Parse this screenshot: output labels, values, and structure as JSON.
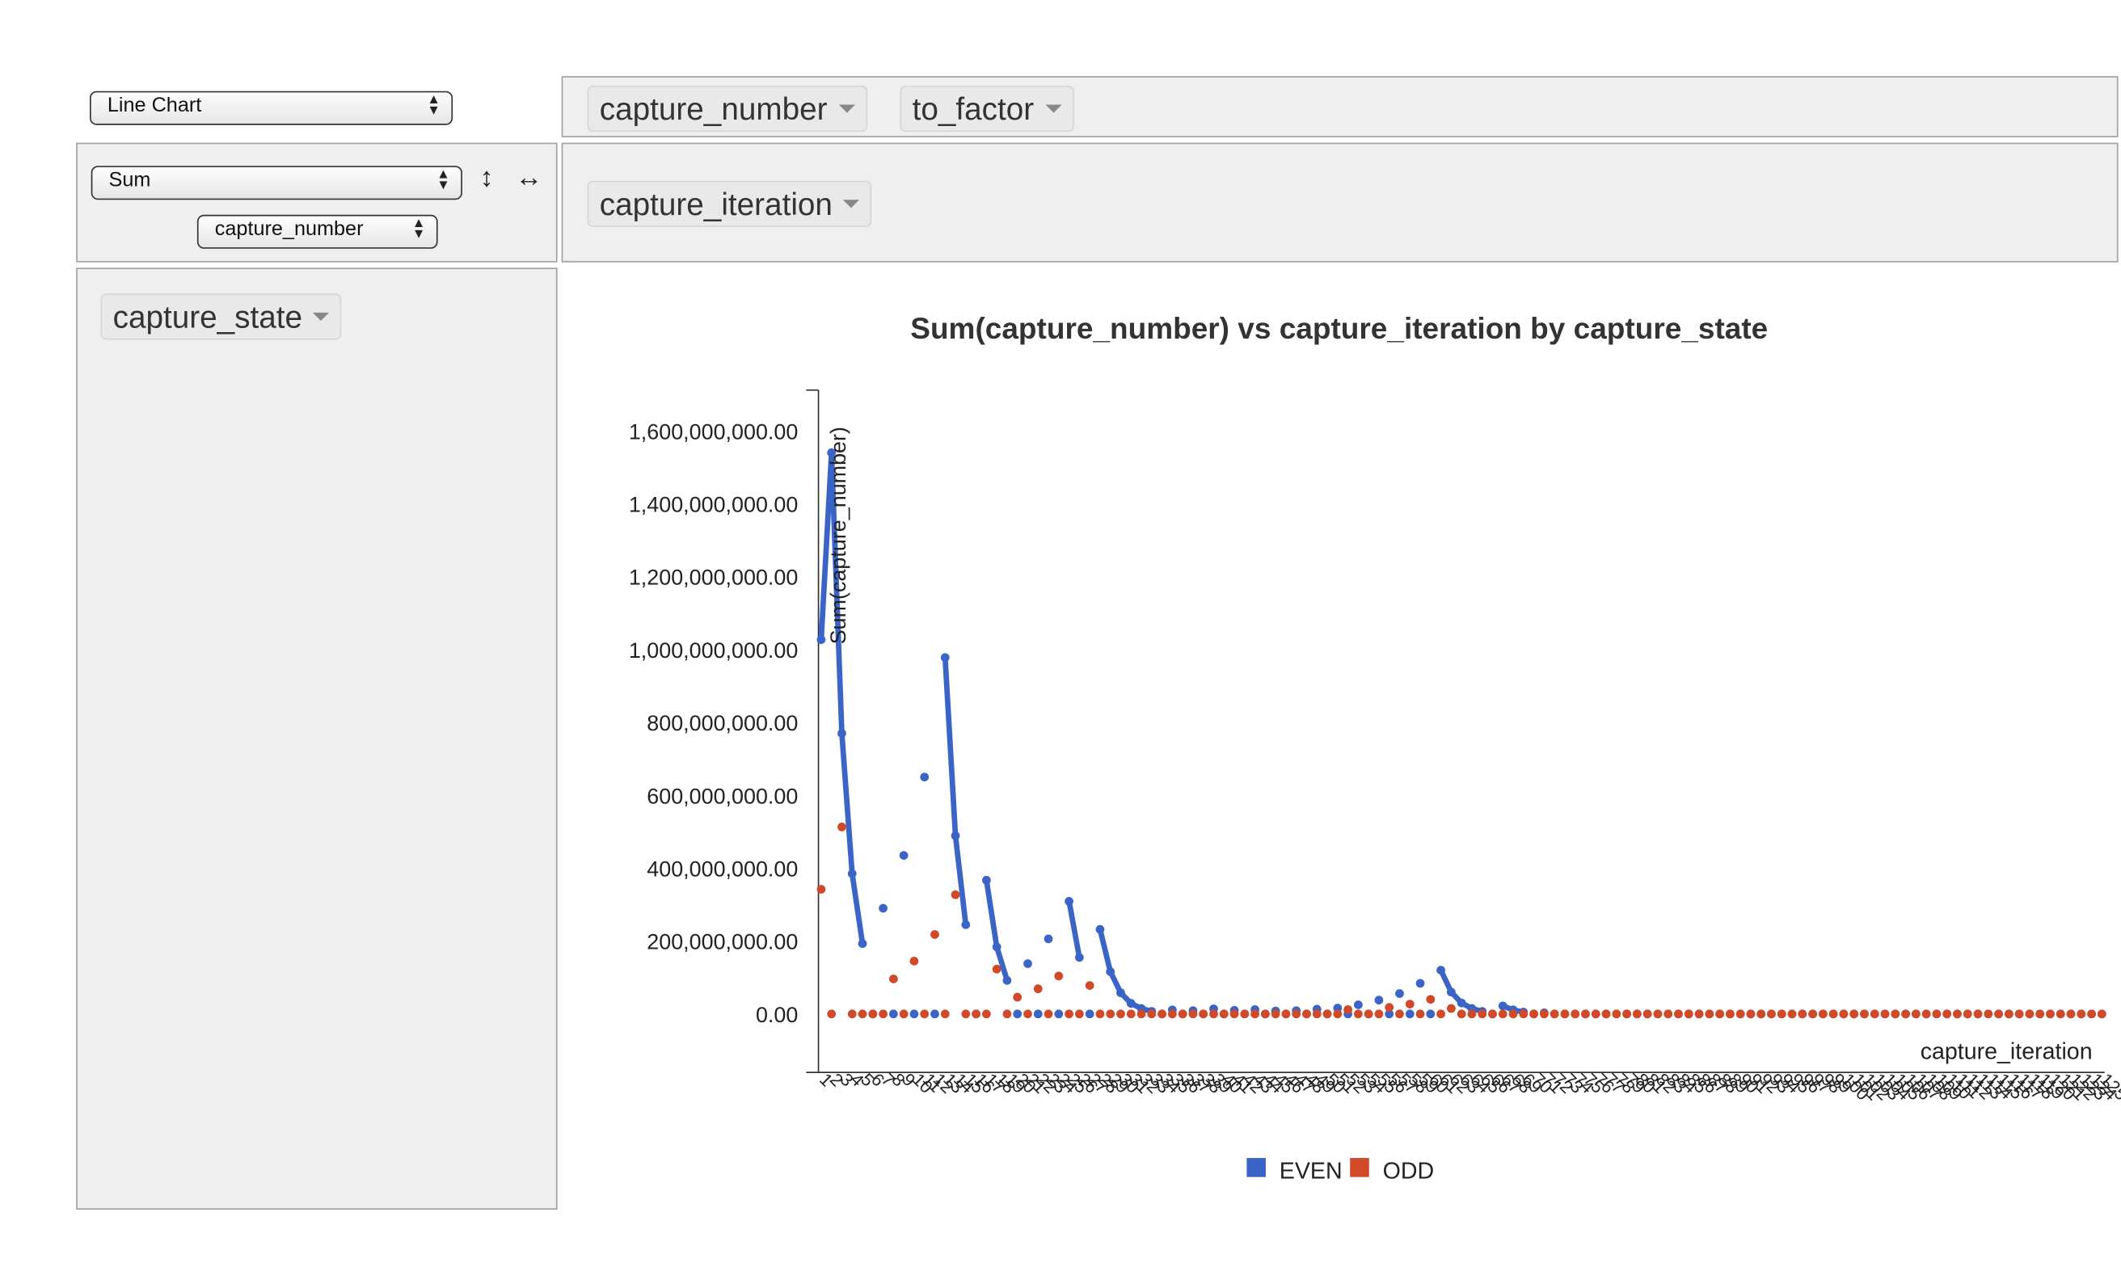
{
  "controls": {
    "renderer_select": "Line Chart",
    "aggregator_select": "Sum",
    "attribute_select": "capture_number",
    "sort_vertical_icon": "↕",
    "sort_horizontal_icon": "↔"
  },
  "unused_attributes": [
    {
      "label": "capture_number"
    },
    {
      "label": "to_factor"
    }
  ],
  "column_attributes": [
    {
      "label": "capture_iteration"
    }
  ],
  "row_attributes": [
    {
      "label": "capture_state"
    }
  ],
  "chart_data": {
    "type": "line",
    "title": "Sum(capture_number) vs capture_iteration by capture_state",
    "xlabel": "capture_iteration",
    "ylabel": "Sum(capture_number)",
    "ylim": [
      0,
      1600000000
    ],
    "yticks": [
      "0.00",
      "200,000,000.00",
      "400,000,000.00",
      "600,000,000.00",
      "800,000,000.00",
      "1,000,000,000.00",
      "1,200,000,000.00",
      "1,400,000,000.00",
      "1,600,000,000.00"
    ],
    "x_count": 125,
    "legend": "bottom",
    "series": [
      {
        "name": "EVEN",
        "color": "#3b64c7",
        "points": [
          [
            1,
            1027000000
          ],
          [
            2,
            1540000000
          ],
          [
            3,
            770000000
          ],
          [
            4,
            385000000
          ],
          [
            5,
            193000000
          ],
          [
            7,
            290000000
          ],
          [
            9,
            435000000
          ],
          [
            11,
            650000000
          ],
          [
            13,
            978000000
          ],
          [
            14,
            489000000
          ],
          [
            15,
            245000000
          ],
          [
            17,
            367000000
          ],
          [
            18,
            184000000
          ],
          [
            19,
            92000000
          ],
          [
            21,
            138000000
          ],
          [
            23,
            206000000
          ],
          [
            25,
            309000000
          ],
          [
            26,
            155000000
          ],
          [
            28,
            232000000
          ],
          [
            29,
            116000000
          ],
          [
            30,
            58000000
          ],
          [
            31,
            29000000
          ],
          [
            32,
            15000000
          ],
          [
            33,
            7000000
          ],
          [
            35,
            11000000
          ],
          [
            37,
            9000000
          ],
          [
            39,
            14000000
          ],
          [
            41,
            10000000
          ],
          [
            43,
            12000000
          ],
          [
            45,
            8000000
          ],
          [
            47,
            9000000
          ],
          [
            49,
            13000000
          ],
          [
            51,
            16000000
          ],
          [
            53,
            25000000
          ],
          [
            55,
            38000000
          ],
          [
            57,
            56000000
          ],
          [
            59,
            84000000
          ],
          [
            61,
            120000000
          ],
          [
            62,
            60000000
          ],
          [
            63,
            30000000
          ],
          [
            64,
            15000000
          ],
          [
            65,
            7000000
          ],
          [
            67,
            22000000
          ],
          [
            68,
            11000000
          ],
          [
            69,
            5000000
          ],
          [
            71,
            3000000
          ]
        ]
      },
      {
        "name": "ODD",
        "color": "#d04a2a",
        "points": [
          [
            1,
            342000000
          ],
          [
            3,
            513000000
          ],
          [
            8,
            96000000
          ],
          [
            10,
            145000000
          ],
          [
            12,
            218000000
          ],
          [
            14,
            327000000
          ],
          [
            18,
            123000000
          ],
          [
            20,
            46000000
          ],
          [
            22,
            69000000
          ],
          [
            24,
            104000000
          ],
          [
            27,
            78000000
          ],
          [
            52,
            12000000
          ],
          [
            56,
            18000000
          ],
          [
            58,
            27000000
          ],
          [
            60,
            40000000
          ],
          [
            62,
            15000000
          ]
        ]
      }
    ]
  }
}
